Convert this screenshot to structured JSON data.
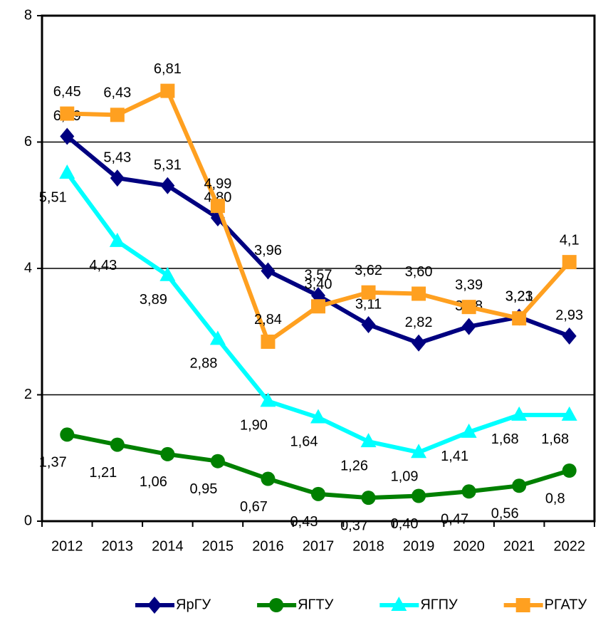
{
  "chart_data": {
    "type": "line",
    "categories": [
      "2012",
      "2013",
      "2014",
      "2015",
      "2016",
      "2017",
      "2018",
      "2019",
      "2020",
      "2021",
      "2022"
    ],
    "ylim": [
      0,
      8
    ],
    "yticks": [
      0,
      2,
      4,
      6,
      8
    ],
    "grid": true,
    "legend": "bottom",
    "series": [
      {
        "name": "ЯрГУ",
        "color": "#000080",
        "marker": "diamond",
        "values": [
          6.09,
          5.43,
          5.31,
          4.8,
          3.96,
          3.57,
          3.11,
          2.82,
          3.08,
          3.23,
          2.93
        ],
        "value_labels": [
          "6,09",
          "5,43",
          "5,31",
          "4,80",
          "3,96",
          "3,57",
          "3,11",
          "2,82",
          "3,08",
          "3,23",
          "2,93"
        ]
      },
      {
        "name": "ЯГТУ",
        "color": "#008000",
        "marker": "circle",
        "values": [
          1.37,
          1.21,
          1.06,
          0.95,
          0.67,
          0.43,
          0.37,
          0.4,
          0.47,
          0.56,
          0.8
        ],
        "value_labels": [
          "1,37",
          "1,21",
          "1,06",
          "0,95",
          "0,67",
          "0,43",
          "0,37",
          "0,40",
          "0,47",
          "0,56",
          "0,8"
        ]
      },
      {
        "name": "ЯГПУ",
        "color": "#00FFFF",
        "marker": "triangle",
        "values": [
          5.51,
          4.43,
          3.89,
          2.88,
          1.9,
          1.64,
          1.26,
          1.09,
          1.41,
          1.68,
          1.68
        ],
        "value_labels": [
          "5,51",
          "4,43",
          "3,89",
          "2,88",
          "1,90",
          "1,64",
          "1,26",
          "1,09",
          "1,41",
          "1,68",
          "1,68"
        ]
      },
      {
        "name": "РГАТУ",
        "color": "#FFA020",
        "marker": "square",
        "values": [
          6.45,
          6.43,
          6.81,
          4.99,
          2.84,
          3.4,
          3.62,
          3.6,
          3.39,
          3.21,
          4.1
        ],
        "value_labels": [
          "6,45",
          "6,43",
          "6,81",
          "4,99",
          "2,84",
          "3,40",
          "3,62",
          "3,60",
          "3,39",
          "3,21",
          "4,1"
        ]
      }
    ]
  }
}
